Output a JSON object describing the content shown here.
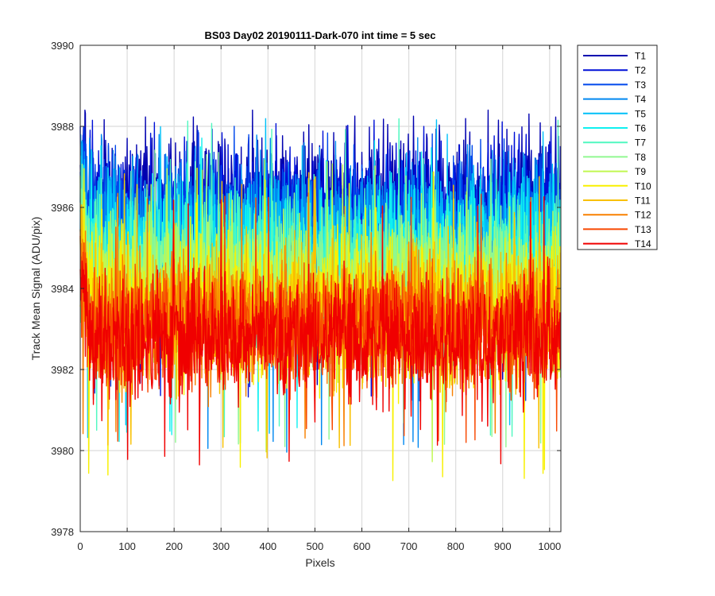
{
  "chart_data": {
    "type": "line",
    "title": "BS03 Day02 20190111-Dark-070 int time = 5 sec",
    "xlabel": "Pixels",
    "ylabel": "Track Mean Signal (ADU/pix)",
    "xlim": [
      0,
      1024
    ],
    "ylim": [
      3978,
      3990
    ],
    "xticks": [
      0,
      100,
      200,
      300,
      400,
      500,
      600,
      700,
      800,
      900,
      1000
    ],
    "yticks": [
      3978,
      3980,
      3982,
      3984,
      3986,
      3988,
      3990
    ],
    "grid": true,
    "legend_position": "outside-top-right",
    "series": [
      {
        "name": "T1",
        "color": "#0000b0",
        "mean": 3986.2,
        "range": [
          3981.5,
          3988.4
        ]
      },
      {
        "name": "T2",
        "color": "#0010d8",
        "mean": 3985.9,
        "range": [
          3981.3,
          3988.2
        ]
      },
      {
        "name": "T3",
        "color": "#0048ec",
        "mean": 3985.6,
        "range": [
          3981.2,
          3988.0
        ]
      },
      {
        "name": "T4",
        "color": "#0088f0",
        "mean": 3985.3,
        "range": [
          3979.9,
          3987.8
        ]
      },
      {
        "name": "T5",
        "color": "#00c0f8",
        "mean": 3985.0,
        "range": [
          3980.3,
          3988.2
        ]
      },
      {
        "name": "T6",
        "color": "#10f0f0",
        "mean": 3984.8,
        "range": [
          3980.2,
          3987.8
        ]
      },
      {
        "name": "T7",
        "color": "#50f8c0",
        "mean": 3984.5,
        "range": [
          3980.3,
          3988.2
        ]
      },
      {
        "name": "T8",
        "color": "#90f890",
        "mean": 3984.2,
        "range": [
          3980.0,
          3987.5
        ]
      },
      {
        "name": "T9",
        "color": "#c0f850",
        "mean": 3983.9,
        "range": [
          3979.6,
          3987.2
        ]
      },
      {
        "name": "T10",
        "color": "#f8f000",
        "mean": 3983.6,
        "range": [
          3979.2,
          3987.0
        ]
      },
      {
        "name": "T11",
        "color": "#f8c000",
        "mean": 3983.4,
        "range": [
          3979.8,
          3986.9
        ]
      },
      {
        "name": "T12",
        "color": "#f88000",
        "mean": 3983.2,
        "range": [
          3980.1,
          3986.6
        ]
      },
      {
        "name": "T13",
        "color": "#f84800",
        "mean": 3983.0,
        "range": [
          3980.2,
          3986.5
        ]
      },
      {
        "name": "T14",
        "color": "#f00000",
        "mean": 3982.8,
        "range": [
          3979.6,
          3986.3
        ]
      }
    ]
  }
}
